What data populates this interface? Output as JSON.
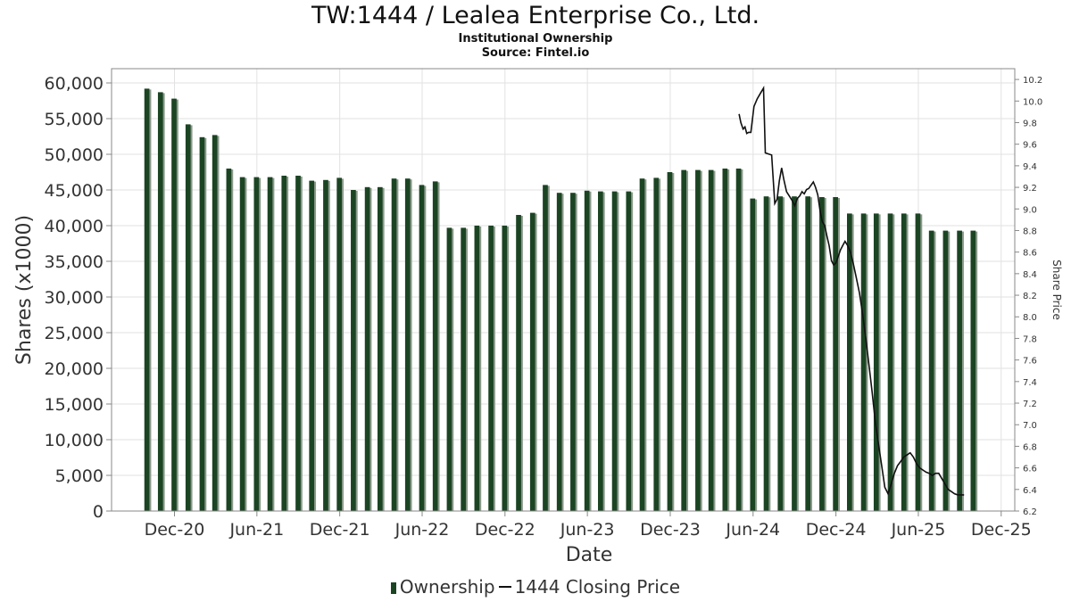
{
  "title": "TW:1444 / Lealea Enterprise Co., Ltd.",
  "subtitle": "Institutional Ownership",
  "source": "Source: Fintel.io",
  "legend": {
    "ownership": "Ownership",
    "price": "1444 Closing Price"
  },
  "colors": {
    "bar": "#1b4423",
    "bar_shadow": "#8c9a8c",
    "price_line": "#111111",
    "grid": "#e2e2e2"
  },
  "chart_data": {
    "type": "bar",
    "xlabel": "Date",
    "ylabel": "Shares (x1000)",
    "y2label": "Share Price",
    "ylim": [
      0,
      62000
    ],
    "y2lim": [
      6.2,
      10.3
    ],
    "yticks": [
      0,
      5000,
      10000,
      15000,
      20000,
      25000,
      30000,
      35000,
      40000,
      45000,
      50000,
      55000,
      60000
    ],
    "ytick_labels": [
      "0",
      "5,000",
      "10,000",
      "15,000",
      "20,000",
      "25,000",
      "30,000",
      "35,000",
      "40,000",
      "45,000",
      "50,000",
      "55,000",
      "60,000"
    ],
    "y2ticks": [
      6.2,
      6.4,
      6.6,
      6.8,
      7.0,
      7.2,
      7.4,
      7.6,
      7.8,
      8.0,
      8.2,
      8.4,
      8.6,
      8.8,
      9.0,
      9.2,
      9.4,
      9.6,
      9.8,
      10.0,
      10.2
    ],
    "y2tick_labels": [
      "6.2",
      "6.4",
      "6.6",
      "6.8",
      "7.0",
      "7.2",
      "7.4",
      "7.6",
      "7.8",
      "8.0",
      "8.2",
      "8.4",
      "8.6",
      "8.8",
      "9.0",
      "9.2",
      "9.4",
      "9.6",
      "9.8",
      "10.0",
      "10.2"
    ],
    "xlim": [
      "2020-07-15",
      "2025-12-31"
    ],
    "xticks": [
      "2020-12-01",
      "2021-06-01",
      "2021-12-01",
      "2022-06-01",
      "2022-12-01",
      "2023-06-01",
      "2023-12-01",
      "2024-06-01",
      "2024-12-01",
      "2025-06-01",
      "2025-12-01"
    ],
    "xtick_labels": [
      "Dec-20",
      "Jun-21",
      "Dec-21",
      "Jun-22",
      "Dec-22",
      "Jun-23",
      "Dec-23",
      "Jun-24",
      "Dec-24",
      "Jun-25",
      "Dec-25"
    ],
    "grid": true,
    "legend_position": "bottom",
    "series": [
      {
        "name": "Ownership",
        "type": "bar",
        "x": [
          "2020-10-01",
          "2020-10-31",
          "2020-11-30",
          "2020-12-31",
          "2021-01-31",
          "2021-02-28",
          "2021-03-31",
          "2021-04-30",
          "2021-05-31",
          "2021-06-30",
          "2021-07-31",
          "2021-08-31",
          "2021-09-30",
          "2021-10-31",
          "2021-11-30",
          "2021-12-31",
          "2022-01-31",
          "2022-02-28",
          "2022-03-31",
          "2022-04-30",
          "2022-05-31",
          "2022-06-30",
          "2022-07-31",
          "2022-08-31",
          "2022-09-30",
          "2022-10-31",
          "2022-11-30",
          "2022-12-31",
          "2023-01-31",
          "2023-02-28",
          "2023-03-31",
          "2023-04-30",
          "2023-05-31",
          "2023-06-30",
          "2023-07-31",
          "2023-08-31",
          "2023-09-30",
          "2023-10-31",
          "2023-11-30",
          "2023-12-31",
          "2024-01-31",
          "2024-02-29",
          "2024-03-31",
          "2024-04-30",
          "2024-05-31",
          "2024-06-30",
          "2024-07-31",
          "2024-08-31",
          "2024-09-30",
          "2024-10-31",
          "2024-11-30",
          "2024-12-31",
          "2025-01-31",
          "2025-02-28",
          "2025-03-31",
          "2025-04-30",
          "2025-05-31",
          "2025-06-30",
          "2025-07-31",
          "2025-08-31",
          "2025-09-30"
        ],
        "values": [
          59200,
          58700,
          57800,
          54200,
          52400,
          52700,
          48000,
          46800,
          46800,
          46800,
          47000,
          47000,
          46300,
          46400,
          46700,
          45000,
          45400,
          45400,
          46600,
          46600,
          45700,
          46200,
          39700,
          39700,
          40000,
          40000,
          40000,
          41500,
          41800,
          45700,
          44600,
          44600,
          44900,
          44800,
          44800,
          44800,
          46600,
          46700,
          47500,
          47800,
          47800,
          47800,
          48000,
          48000,
          43800,
          44100,
          44100,
          44100,
          44100,
          44000,
          44000,
          41700,
          41700,
          41700,
          41700,
          41700,
          41700,
          39300,
          39300,
          39300,
          39300
        ]
      },
      {
        "name": "1444 Closing Price",
        "type": "line",
        "x": [
          "2024-05-01",
          "2024-05-05",
          "2024-05-10",
          "2024-05-14",
          "2024-05-18",
          "2024-05-22",
          "2024-05-27",
          "2024-06-03",
          "2024-06-10",
          "2024-06-17",
          "2024-06-24",
          "2024-06-28",
          "2024-07-05",
          "2024-07-12",
          "2024-07-19",
          "2024-07-24",
          "2024-07-29",
          "2024-08-03",
          "2024-08-08",
          "2024-08-14",
          "2024-08-20",
          "2024-08-26",
          "2024-09-01",
          "2024-09-07",
          "2024-09-12",
          "2024-09-17",
          "2024-09-22",
          "2024-09-27",
          "2024-10-02",
          "2024-10-07",
          "2024-10-12",
          "2024-10-17",
          "2024-10-22",
          "2024-10-27",
          "2024-11-01",
          "2024-11-06",
          "2024-11-11",
          "2024-11-16",
          "2024-11-21",
          "2024-11-26",
          "2024-12-01",
          "2024-12-06",
          "2024-12-11",
          "2024-12-16",
          "2024-12-21",
          "2024-12-27",
          "2025-01-02",
          "2025-01-08",
          "2025-01-15",
          "2025-01-22",
          "2025-01-29",
          "2025-02-05",
          "2025-02-12",
          "2025-02-19",
          "2025-02-26",
          "2025-03-05",
          "2025-03-12",
          "2025-03-19",
          "2025-03-26",
          "2025-04-02",
          "2025-04-09",
          "2025-04-16",
          "2025-04-23",
          "2025-04-30",
          "2025-05-07",
          "2025-05-14",
          "2025-05-21",
          "2025-05-28",
          "2025-06-04",
          "2025-06-11",
          "2025-06-18",
          "2025-06-25",
          "2025-07-02",
          "2025-07-09",
          "2025-07-16",
          "2025-07-23",
          "2025-07-30",
          "2025-08-06",
          "2025-08-13",
          "2025-08-20",
          "2025-08-27",
          "2025-09-03",
          "2025-09-10"
        ],
        "values": [
          9.88,
          9.8,
          9.74,
          9.76,
          9.7,
          9.71,
          9.71,
          9.95,
          10.02,
          10.07,
          10.12,
          9.52,
          9.51,
          9.5,
          9.05,
          9.09,
          9.26,
          9.38,
          9.27,
          9.16,
          9.12,
          9.08,
          9.03,
          9.1,
          9.12,
          9.16,
          9.14,
          9.18,
          9.19,
          9.22,
          9.25,
          9.2,
          9.13,
          8.98,
          8.88,
          8.85,
          8.75,
          8.66,
          8.52,
          8.48,
          8.5,
          8.56,
          8.62,
          8.66,
          8.7,
          8.66,
          8.6,
          8.5,
          8.36,
          8.22,
          8.02,
          7.8,
          7.55,
          7.3,
          7.02,
          6.82,
          6.62,
          6.42,
          6.36,
          6.45,
          6.55,
          6.62,
          6.66,
          6.7,
          6.72,
          6.74,
          6.7,
          6.64,
          6.6,
          6.58,
          6.56,
          6.55,
          6.53,
          6.55,
          6.55,
          6.5,
          6.45,
          6.4,
          6.38,
          6.36,
          6.35,
          6.35,
          6.35
        ]
      }
    ]
  }
}
